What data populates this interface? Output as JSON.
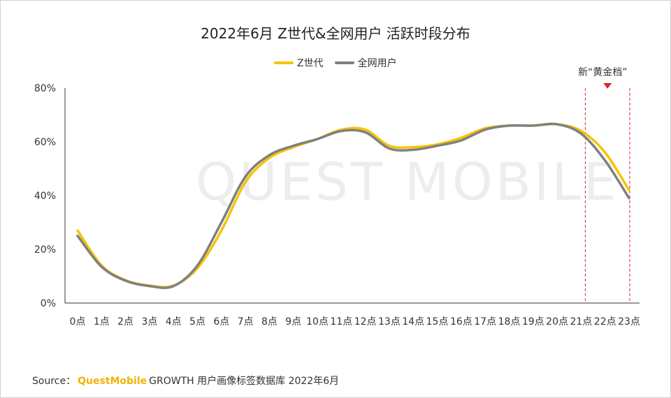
{
  "chart_data": {
    "type": "line",
    "title": "2022年6月 Z世代&全网用户 活跃时段分布",
    "categories": [
      "0点",
      "1点",
      "2点",
      "3点",
      "4点",
      "5点",
      "6点",
      "7点",
      "8点",
      "9点",
      "10点",
      "11点",
      "12点",
      "13点",
      "14点",
      "15点",
      "16点",
      "17点",
      "18点",
      "19点",
      "20点",
      "21点",
      "22点",
      "23点"
    ],
    "yticks": [
      "0%",
      "20%",
      "40%",
      "60%",
      "80%"
    ],
    "ylim": [
      0,
      80
    ],
    "grid": false,
    "legend_position": "top",
    "series": [
      {
        "name": "Z世代",
        "color": "#f5c400",
        "values": [
          27,
          14,
          8.5,
          6.5,
          6.5,
          13,
          27,
          45,
          54,
          58,
          61,
          64.5,
          64.5,
          58.5,
          58,
          59,
          61.5,
          65,
          66,
          66,
          66.5,
          64,
          56,
          42
        ]
      },
      {
        "name": "全网用户",
        "color": "#808080",
        "values": [
          25,
          13.5,
          8.3,
          6.3,
          6.3,
          14,
          30,
          47,
          55,
          58.5,
          61,
          64,
          63.5,
          57.5,
          57,
          58.5,
          60.5,
          64.5,
          66,
          66,
          66.5,
          63,
          53,
          39
        ]
      }
    ],
    "annotation": {
      "label": "新“黄金档”",
      "color": "#d9252a"
    }
  },
  "legend": [
    {
      "label": "Z世代",
      "color": "#f5c400"
    },
    {
      "label": "全网用户",
      "color": "#808080"
    }
  ],
  "source": {
    "prefix": "Source：",
    "brand": "QuestMobile",
    "suffix": "GROWTH 用户画像标签数据库 2022年6月"
  },
  "watermark": "QUEST MOBILE"
}
